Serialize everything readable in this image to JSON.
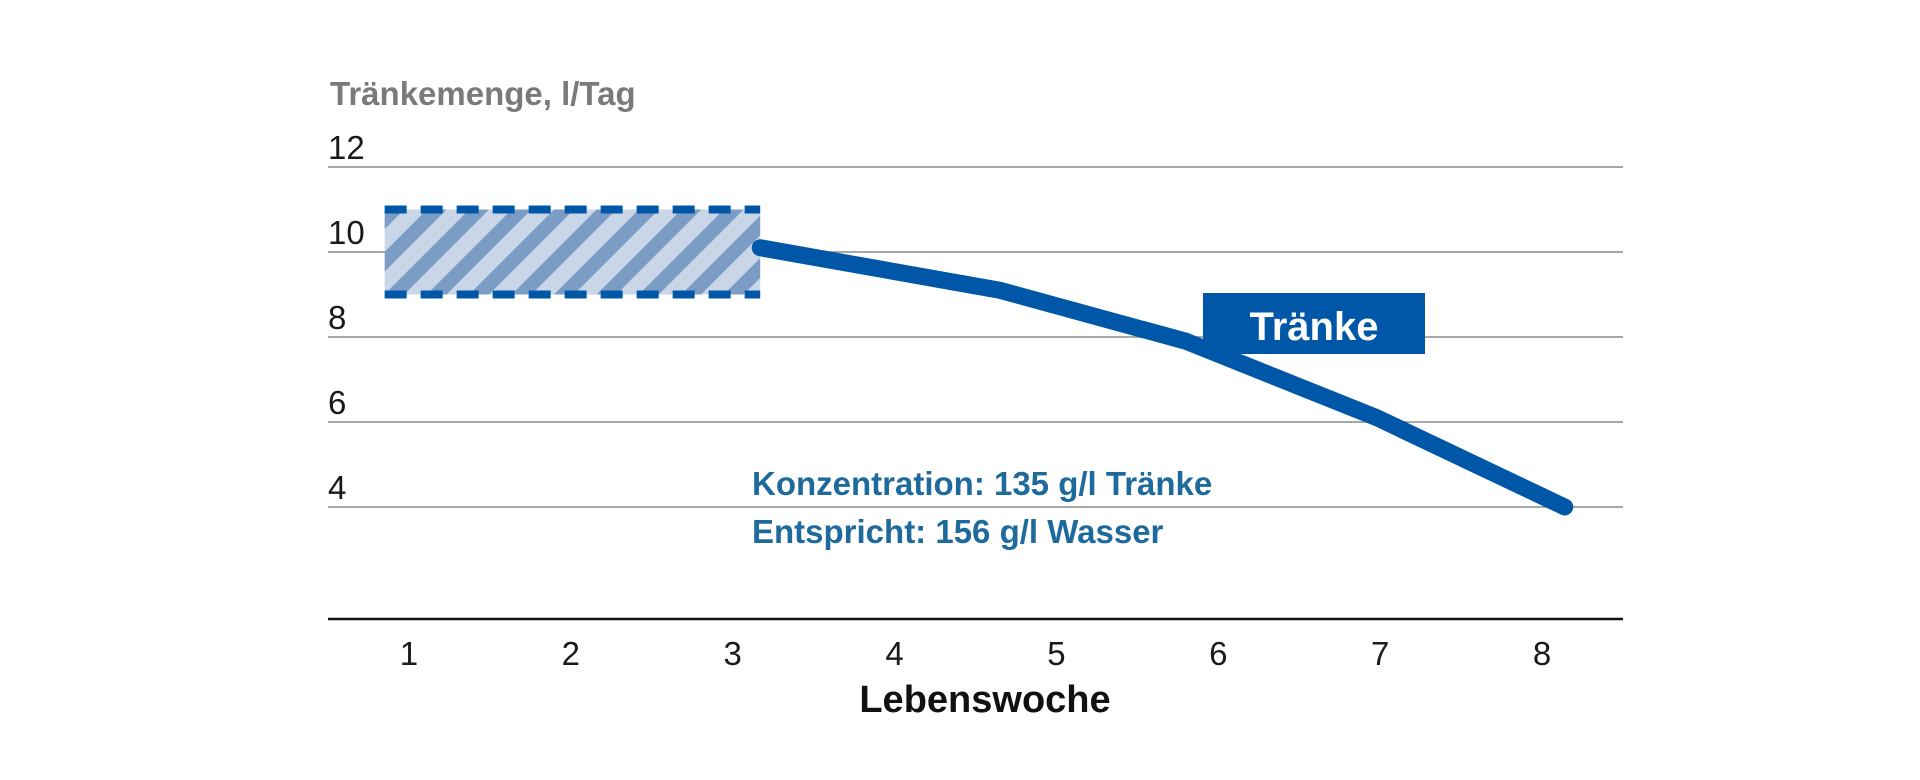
{
  "chart_data": {
    "type": "line",
    "ylabel": "Tränkemenge, l/Tag",
    "xlabel": "Lebenswoche",
    "x_ticks": [
      "1",
      "2",
      "3",
      "4",
      "5",
      "6",
      "7",
      "8"
    ],
    "y_ticks": [
      "4",
      "6",
      "8",
      "10",
      "12"
    ],
    "ylim": [
      1.4,
      12
    ],
    "xlim": [
      0.5,
      8.5
    ],
    "grid": true,
    "series": [
      {
        "name": "Tränke",
        "color": "#0057a8",
        "x": [
          3.17,
          4.65,
          5.8,
          6.98,
          8.14
        ],
        "y": [
          10.1,
          9.1,
          7.9,
          6.1,
          4.0
        ]
      }
    ],
    "range_band": {
      "x": [
        0.85,
        3.17
      ],
      "y": [
        9.0,
        11.0
      ],
      "color": "#0057a8",
      "style": "hatched"
    },
    "annotations": [
      "Konzentration: 135 g/l Tränke",
      "Entspricht: 156 g/l Wasser"
    ],
    "legend": {
      "label": "Tränke",
      "placement": "on-line"
    }
  }
}
